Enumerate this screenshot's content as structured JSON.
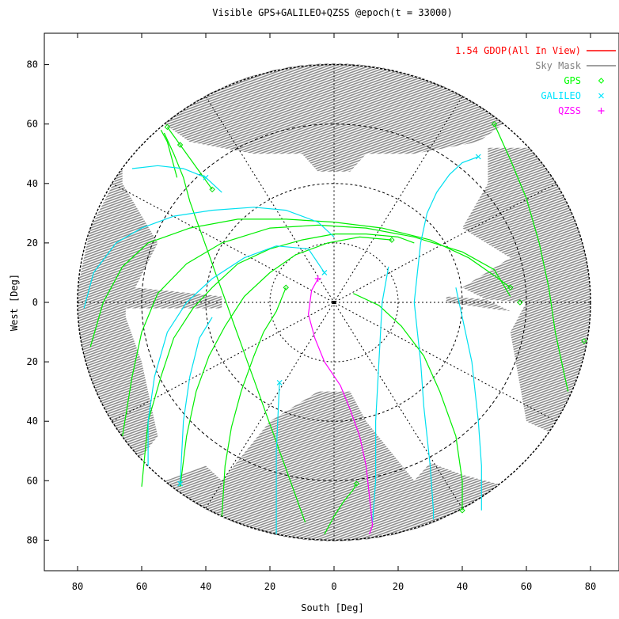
{
  "chart_data": {
    "type": "scatter",
    "title": "Visible GPS+GALILEO+QZSS @epoch(t =  33000)",
    "xlabel": "South [Deg]",
    "ylabel": "West  [Deg]",
    "xlim": [
      -90,
      90
    ],
    "ylim": [
      -90,
      90
    ],
    "x_ticks": [
      {
        "v": -80,
        "label": "80"
      },
      {
        "v": -60,
        "label": "60"
      },
      {
        "v": -40,
        "label": "40"
      },
      {
        "v": -20,
        "label": "20"
      },
      {
        "v": 0,
        "label": "0"
      },
      {
        "v": 20,
        "label": "20"
      },
      {
        "v": 40,
        "label": "40"
      },
      {
        "v": 60,
        "label": "60"
      },
      {
        "v": 80,
        "label": "80"
      }
    ],
    "y_ticks": [
      {
        "v": 80,
        "label": "80"
      },
      {
        "v": 60,
        "label": "60"
      },
      {
        "v": 40,
        "label": "40"
      },
      {
        "v": 20,
        "label": "20"
      },
      {
        "v": 0,
        "label": "0"
      },
      {
        "v": -20,
        "label": "20"
      },
      {
        "v": -40,
        "label": "40"
      },
      {
        "v": -60,
        "label": "60"
      },
      {
        "v": -80,
        "label": "80"
      }
    ],
    "grid": "polar",
    "legend_position": "top-right",
    "legend": [
      {
        "label": "1.54 GDOP(All In View)",
        "color": "#ff0000",
        "marker": "line"
      },
      {
        "label": "Sky Mask",
        "color": "#808080",
        "marker": "line"
      },
      {
        "label": "GPS",
        "color": "#00ff00",
        "marker": "diamond"
      },
      {
        "label": "GALILEO",
        "color": "#00e5ff",
        "marker": "x"
      },
      {
        "label": "QZSS",
        "color": "#ff00ff",
        "marker": "plus"
      }
    ],
    "sky_mask_regions": [
      {
        "name": "north",
        "polygon": [
          [
            -62,
            67
          ],
          [
            -40,
            78
          ],
          [
            -10,
            86
          ],
          [
            10,
            86
          ],
          [
            40,
            78
          ],
          [
            62,
            67
          ],
          [
            45,
            54
          ],
          [
            25,
            50
          ],
          [
            10,
            50
          ],
          [
            5,
            44
          ],
          [
            -5,
            44
          ],
          [
            -10,
            50
          ],
          [
            -25,
            50
          ],
          [
            -45,
            54
          ]
        ]
      },
      {
        "name": "west",
        "polygon": [
          [
            -66,
            46
          ],
          [
            -76,
            25
          ],
          [
            -80,
            5
          ],
          [
            -80,
            -20
          ],
          [
            -75,
            -40
          ],
          [
            -65,
            -55
          ],
          [
            -60,
            -52
          ],
          [
            -55,
            -45
          ],
          [
            -60,
            -20
          ],
          [
            -65,
            -5
          ],
          [
            -65,
            -2
          ],
          [
            -35,
            -2
          ],
          [
            -35,
            2
          ],
          [
            -62,
            5
          ],
          [
            -55,
            20
          ],
          [
            -66,
            40
          ]
        ]
      },
      {
        "name": "east",
        "polygon": [
          [
            48,
            52
          ],
          [
            62,
            52
          ],
          [
            76,
            40
          ],
          [
            80,
            25
          ],
          [
            82,
            5
          ],
          [
            80,
            -20
          ],
          [
            74,
            -40
          ],
          [
            70,
            -45
          ],
          [
            60,
            -40
          ],
          [
            55,
            -10
          ],
          [
            60,
            0
          ],
          [
            35,
            2
          ],
          [
            35,
            0
          ],
          [
            55,
            -3
          ],
          [
            40,
            5
          ],
          [
            55,
            15
          ],
          [
            40,
            25
          ],
          [
            48,
            40
          ]
        ]
      },
      {
        "name": "south",
        "polygon": [
          [
            -65,
            -65
          ],
          [
            -50,
            -78
          ],
          [
            -25,
            -87
          ],
          [
            0,
            -90
          ],
          [
            25,
            -87
          ],
          [
            50,
            -78
          ],
          [
            65,
            -65
          ],
          [
            40,
            -58
          ],
          [
            30,
            -54
          ],
          [
            25,
            -60
          ],
          [
            10,
            -40
          ],
          [
            5,
            -30
          ],
          [
            -5,
            -30
          ],
          [
            -20,
            -40
          ],
          [
            -35,
            -60
          ],
          [
            -40,
            -55
          ]
        ]
      }
    ],
    "gps_tracks": [
      [
        [
          -52,
          59
        ],
        [
          -48,
          53
        ],
        [
          -44,
          47
        ],
        [
          -38,
          38
        ]
      ],
      [
        [
          -54,
          58
        ],
        [
          -52,
          54
        ],
        [
          -51,
          50
        ],
        [
          -49,
          42
        ]
      ],
      [
        [
          -53,
          57
        ],
        [
          -50,
          50
        ],
        [
          -47,
          42
        ],
        [
          -45,
          34
        ],
        [
          -43,
          28
        ],
        [
          -41,
          22
        ],
        [
          -39,
          16
        ],
        [
          -37,
          10
        ],
        [
          -35,
          4
        ],
        [
          -33,
          -2
        ],
        [
          -31,
          -8
        ],
        [
          -29,
          -14
        ],
        [
          -27,
          -20
        ],
        [
          -25,
          -26
        ],
        [
          -23,
          -32
        ],
        [
          -21,
          -38
        ],
        [
          -19,
          -44
        ],
        [
          -17,
          -50
        ],
        [
          -15,
          -56
        ],
        [
          -13,
          -62
        ],
        [
          -11,
          -68
        ],
        [
          -9,
          -74
        ]
      ],
      [
        [
          -76,
          -15
        ],
        [
          -72,
          0
        ],
        [
          -66,
          12
        ],
        [
          -58,
          20
        ],
        [
          -45,
          25
        ],
        [
          -30,
          28
        ],
        [
          -15,
          28
        ],
        [
          0,
          27
        ],
        [
          15,
          25
        ],
        [
          30,
          21
        ],
        [
          42,
          15
        ],
        [
          50,
          9
        ],
        [
          55,
          5
        ]
      ],
      [
        [
          -66,
          -45
        ],
        [
          -63,
          -25
        ],
        [
          -60,
          -10
        ],
        [
          -55,
          3
        ],
        [
          -46,
          13
        ],
        [
          -35,
          20
        ],
        [
          -20,
          25
        ],
        [
          -5,
          26
        ],
        [
          10,
          25
        ],
        [
          25,
          22
        ],
        [
          40,
          17
        ],
        [
          50,
          11
        ],
        [
          55,
          2
        ]
      ],
      [
        [
          -60,
          -62
        ],
        [
          -58,
          -40
        ],
        [
          -54,
          -25
        ],
        [
          -50,
          -12
        ],
        [
          -44,
          -2
        ],
        [
          -38,
          5
        ],
        [
          -30,
          13
        ],
        [
          -20,
          18
        ],
        [
          -10,
          21
        ],
        [
          0,
          23
        ],
        [
          10,
          23
        ],
        [
          20,
          22
        ],
        [
          25,
          20
        ]
      ],
      [
        [
          -48,
          -62
        ],
        [
          -46,
          -45
        ],
        [
          -43,
          -30
        ],
        [
          -39,
          -18
        ],
        [
          -34,
          -8
        ],
        [
          -28,
          2
        ],
        [
          -20,
          10
        ],
        [
          -12,
          16
        ],
        [
          -2,
          20
        ],
        [
          8,
          22
        ],
        [
          18,
          21
        ]
      ],
      [
        [
          -35,
          -72
        ],
        [
          -34,
          -55
        ],
        [
          -32,
          -42
        ],
        [
          -29,
          -30
        ],
        [
          -25,
          -18
        ],
        [
          -22,
          -10
        ],
        [
          -18,
          -3
        ],
        [
          -15,
          5
        ]
      ],
      [
        [
          -3,
          -78
        ],
        [
          0,
          -72
        ],
        [
          3,
          -67
        ],
        [
          6,
          -63
        ],
        [
          7,
          -61
        ]
      ],
      [
        [
          50,
          60
        ],
        [
          55,
          48
        ],
        [
          60,
          35
        ],
        [
          64,
          20
        ],
        [
          67,
          5
        ],
        [
          69,
          -10
        ],
        [
          71,
          -20
        ],
        [
          73,
          -30
        ]
      ],
      [
        [
          78,
          -13
        ]
      ],
      [
        [
          40,
          -70
        ],
        [
          40,
          -60
        ],
        [
          38,
          -45
        ],
        [
          33,
          -30
        ],
        [
          28,
          -18
        ],
        [
          21,
          -8
        ],
        [
          14,
          -1
        ],
        [
          6,
          3
        ]
      ]
    ],
    "galileo_tracks": [
      [
        [
          -63,
          45
        ],
        [
          -55,
          46
        ],
        [
          -47,
          45
        ],
        [
          -40,
          42
        ],
        [
          -35,
          37
        ]
      ],
      [
        [
          -78,
          -2
        ],
        [
          -75,
          10
        ],
        [
          -68,
          20
        ],
        [
          -60,
          25
        ],
        [
          -50,
          29
        ],
        [
          -38,
          31
        ],
        [
          -25,
          32
        ],
        [
          -15,
          31
        ],
        [
          -5,
          27
        ],
        [
          0,
          22
        ]
      ],
      [
        [
          -58,
          -55
        ],
        [
          -58,
          -40
        ],
        [
          -56,
          -25
        ],
        [
          -52,
          -10
        ],
        [
          -46,
          0
        ],
        [
          -38,
          8
        ],
        [
          -28,
          15
        ],
        [
          -18,
          19
        ],
        [
          -8,
          18
        ],
        [
          -3,
          10
        ]
      ],
      [
        [
          -48,
          -61
        ],
        [
          -47,
          -40
        ],
        [
          -45,
          -25
        ],
        [
          -42,
          -12
        ],
        [
          -38,
          -5
        ]
      ],
      [
        [
          -18,
          -78
        ],
        [
          -18,
          -50
        ],
        [
          -17,
          -27
        ]
      ],
      [
        [
          12,
          -74
        ],
        [
          13,
          -60
        ],
        [
          13,
          -40
        ],
        [
          14,
          -20
        ],
        [
          15,
          0
        ],
        [
          17,
          12
        ]
      ],
      [
        [
          45,
          49
        ],
        [
          40,
          47
        ],
        [
          36,
          43
        ],
        [
          32,
          37
        ],
        [
          29,
          30
        ],
        [
          27,
          20
        ],
        [
          26,
          10
        ],
        [
          25,
          0
        ],
        [
          26,
          -10
        ],
        [
          27,
          -20
        ],
        [
          28,
          -35
        ],
        [
          30,
          -55
        ],
        [
          31,
          -70
        ],
        [
          31,
          -73
        ]
      ],
      [
        [
          46,
          -70
        ],
        [
          46,
          -55
        ],
        [
          45,
          -40
        ],
        [
          43,
          -20
        ],
        [
          40,
          -5
        ],
        [
          38,
          5
        ]
      ]
    ],
    "qzss_tracks": [
      [
        [
          -5,
          8
        ],
        [
          -7,
          4
        ],
        [
          -8,
          -4
        ],
        [
          -6,
          -12
        ],
        [
          -3,
          -20
        ],
        [
          2,
          -28
        ],
        [
          5,
          -36
        ],
        [
          8,
          -45
        ],
        [
          10,
          -55
        ],
        [
          11,
          -65
        ],
        [
          12,
          -75
        ],
        [
          11,
          -78
        ]
      ]
    ],
    "gps_points": [
      [
        -52,
        59
      ],
      [
        -48,
        53
      ],
      [
        -38,
        38
      ],
      [
        -15,
        5
      ],
      [
        7,
        -61
      ],
      [
        18,
        21
      ],
      [
        55,
        5
      ],
      [
        50,
        60
      ],
      [
        58,
        0
      ],
      [
        78,
        -13
      ],
      [
        40,
        -70
      ]
    ],
    "galileo_points": [
      [
        -40,
        42
      ],
      [
        -3,
        10
      ],
      [
        -17,
        -27
      ],
      [
        45,
        49
      ],
      [
        -48,
        -61
      ]
    ],
    "qzss_points": [
      [
        -5,
        8
      ]
    ]
  }
}
